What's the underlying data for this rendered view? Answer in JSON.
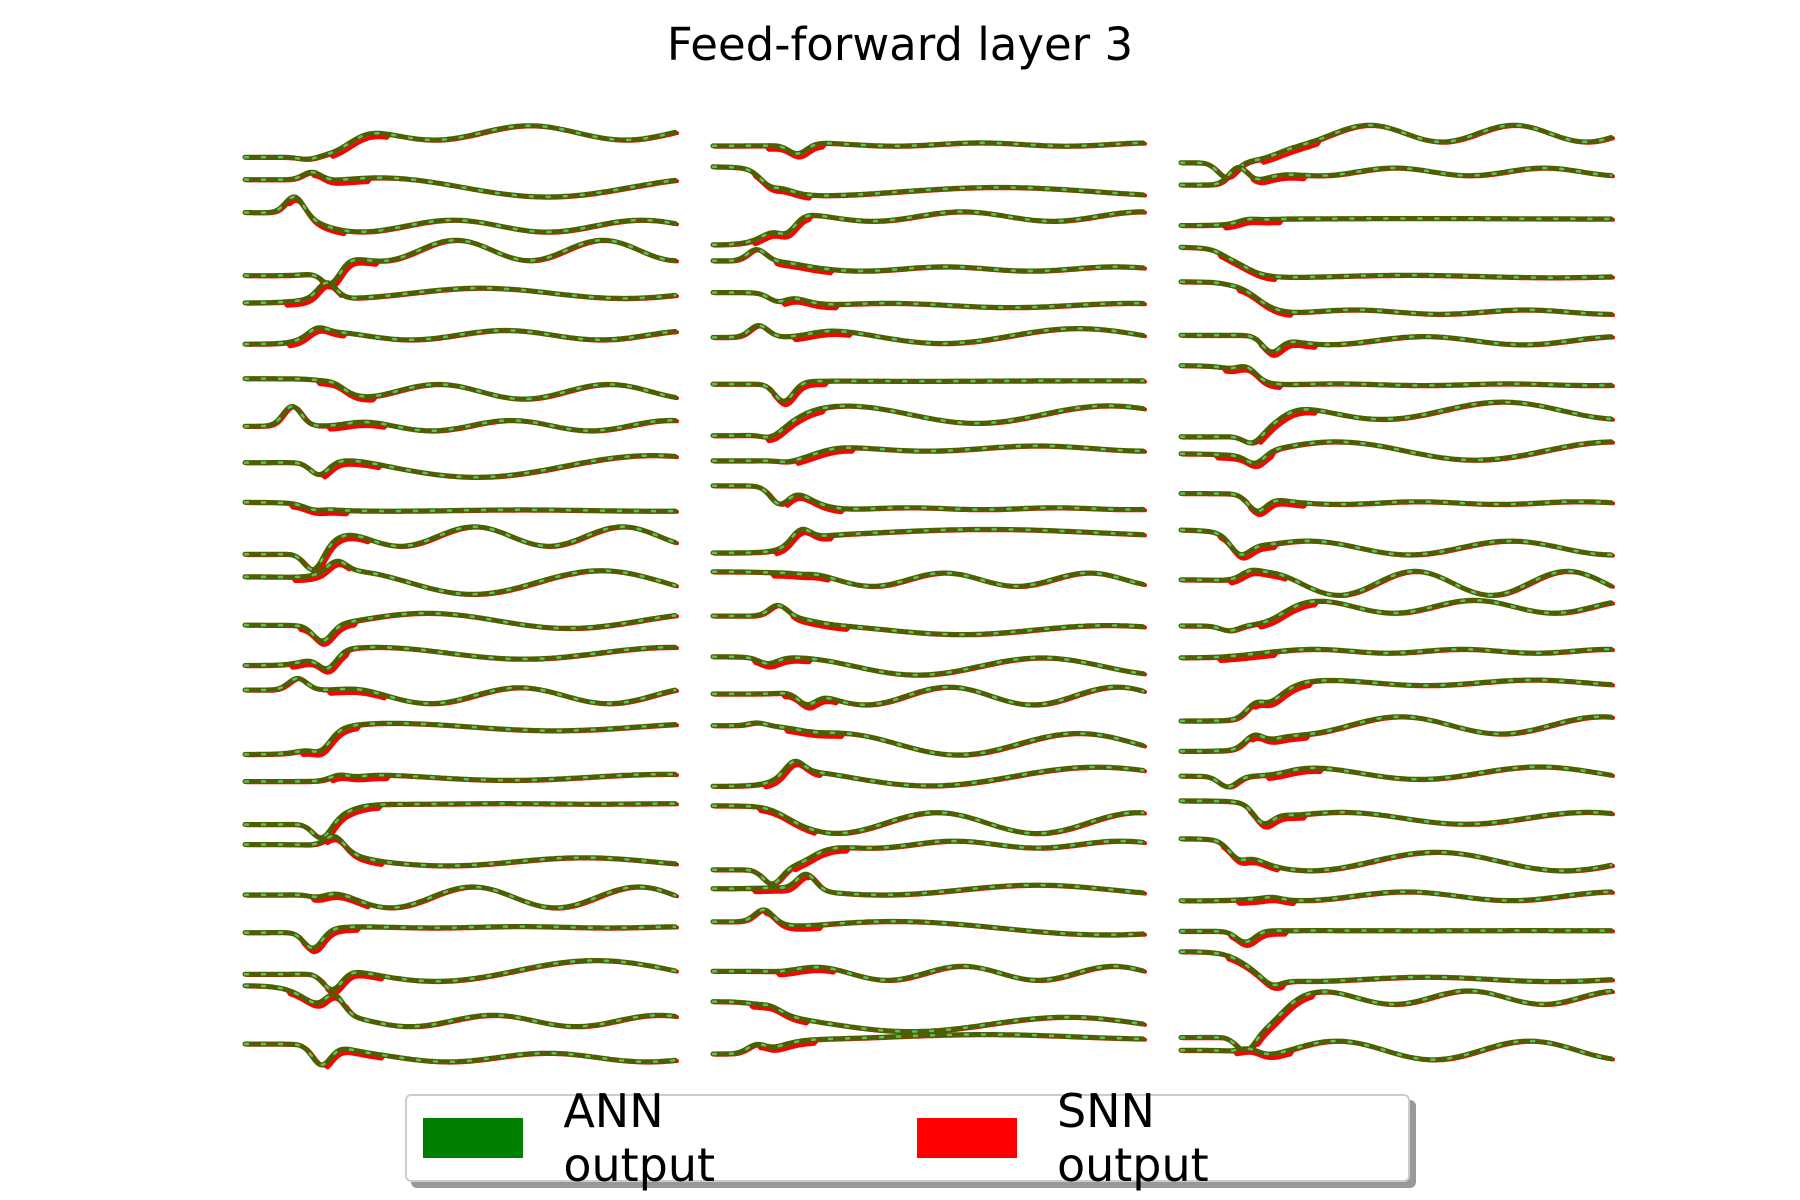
{
  "chart_data": {
    "type": "line",
    "title": "Feed-forward layer 3",
    "xlabel": "",
    "ylabel": "",
    "grid": false,
    "axes_visible": false,
    "legend_placement": "bottom-center",
    "panels": 3,
    "traces_per_panel": 24,
    "series": [
      {
        "name": "ANN output",
        "color": "#008000",
        "line_color": "#4d5f00",
        "dash_color": "#5fc25f"
      },
      {
        "name": "SNN output",
        "color": "#ff0000"
      }
    ]
  }
}
